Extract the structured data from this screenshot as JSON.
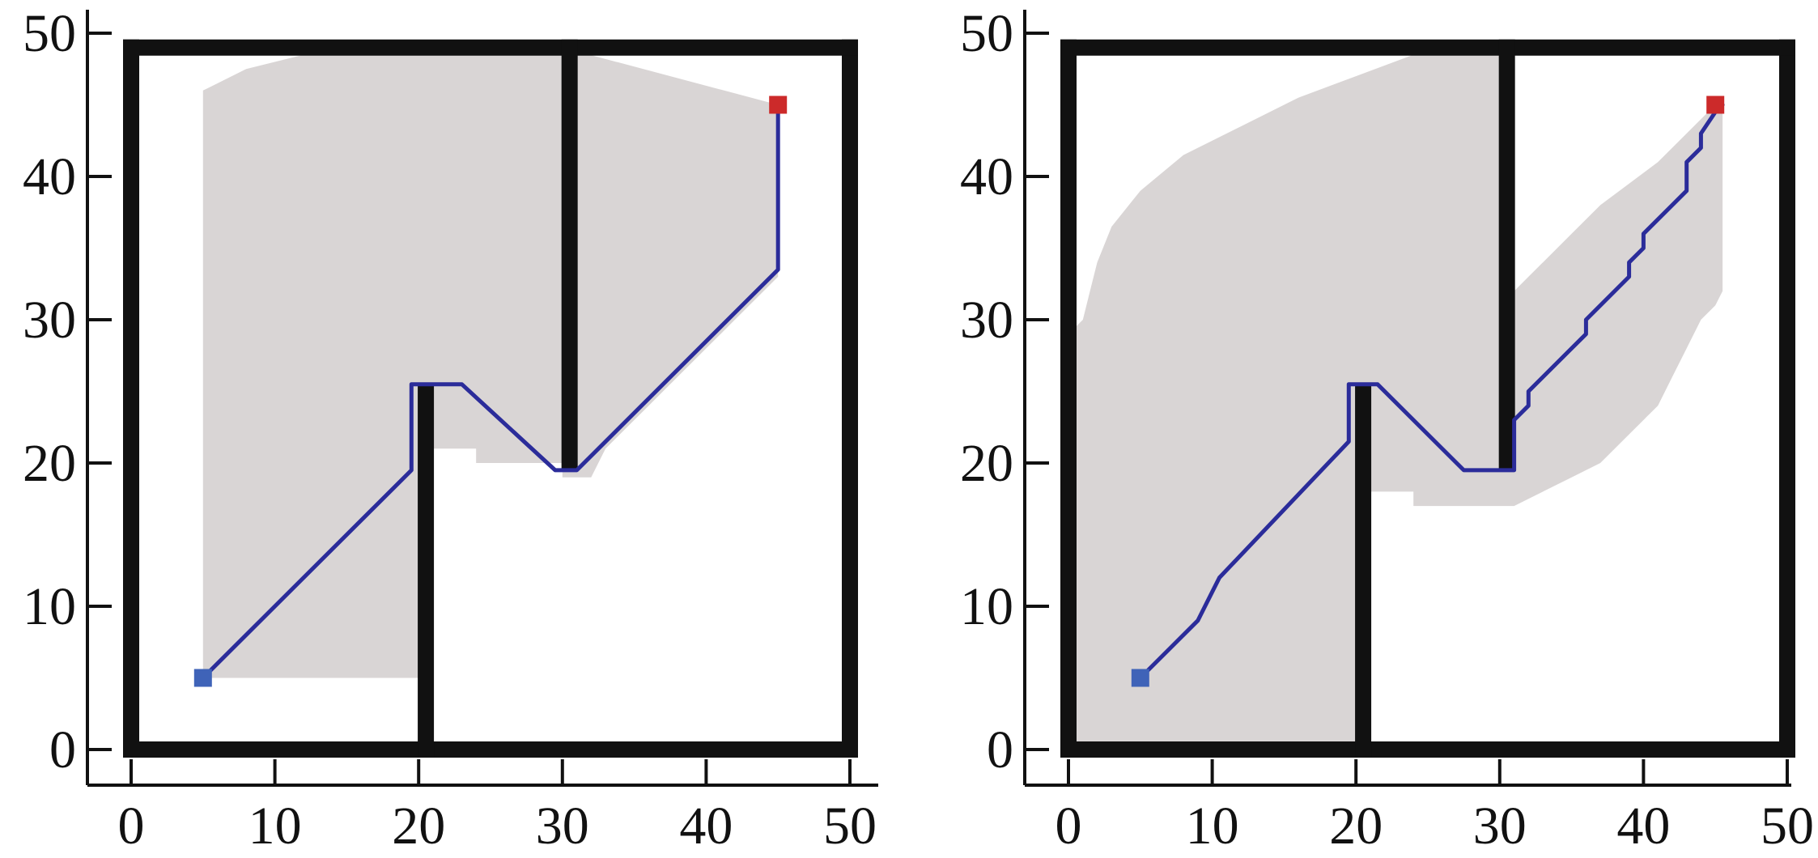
{
  "colors": {
    "wall": "#111111",
    "explored": "#d9d5d5",
    "path": "#2b2c9a",
    "start": "#3f63b8",
    "goal": "#cc2a2a",
    "axis": "#111111"
  },
  "chart_data": [
    {
      "type": "grid-path",
      "xlim": [
        0,
        50
      ],
      "ylim": [
        0,
        50
      ],
      "x_ticks": [
        "0",
        "10",
        "20",
        "30",
        "40",
        "50"
      ],
      "y_ticks": [
        "0",
        "10",
        "20",
        "30",
        "40",
        "50"
      ],
      "start": [
        5,
        5
      ],
      "goal": [
        45,
        45
      ],
      "walls": [
        [
          [
            0,
            0
          ],
          [
            50,
            0
          ]
        ],
        [
          [
            50,
            0
          ],
          [
            50,
            49
          ]
        ],
        [
          [
            50,
            49
          ],
          [
            0,
            49
          ]
        ],
        [
          [
            0,
            49
          ],
          [
            0,
            0
          ]
        ],
        [
          [
            20.5,
            0
          ],
          [
            20.5,
            25
          ]
        ],
        [
          [
            30.5,
            49
          ],
          [
            30.5,
            20
          ]
        ]
      ],
      "explored": [
        [
          5,
          5
        ],
        [
          20,
          5
        ],
        [
          20,
          21
        ],
        [
          24,
          21
        ],
        [
          24,
          20
        ],
        [
          30,
          20
        ],
        [
          30,
          19
        ],
        [
          32,
          19
        ],
        [
          33,
          21
        ],
        [
          34,
          22
        ],
        [
          35,
          23
        ],
        [
          36,
          24
        ],
        [
          37,
          25
        ],
        [
          38,
          26
        ],
        [
          39,
          27
        ],
        [
          40,
          28
        ],
        [
          41,
          29
        ],
        [
          42,
          30
        ],
        [
          43,
          31
        ],
        [
          44,
          32
        ],
        [
          45,
          33
        ],
        [
          45,
          45
        ],
        [
          30,
          49
        ],
        [
          15,
          49
        ],
        [
          12,
          48.5
        ],
        [
          8,
          47.5
        ],
        [
          6,
          46.5
        ],
        [
          5,
          46
        ]
      ],
      "path": [
        [
          5,
          5
        ],
        [
          19.5,
          19.5
        ],
        [
          19.5,
          25.5
        ],
        [
          23,
          25.5
        ],
        [
          29.5,
          19.5
        ],
        [
          31,
          19.5
        ],
        [
          45,
          33.5
        ],
        [
          45,
          45
        ]
      ]
    },
    {
      "type": "grid-path",
      "xlim": [
        0,
        50
      ],
      "ylim": [
        0,
        50
      ],
      "x_ticks": [
        "0",
        "10",
        "20",
        "30",
        "40",
        "50"
      ],
      "y_ticks": [
        "0",
        "10",
        "20",
        "30",
        "40",
        "50"
      ],
      "start": [
        5,
        5
      ],
      "goal": [
        45,
        45
      ],
      "walls": [
        [
          [
            0,
            0
          ],
          [
            50,
            0
          ]
        ],
        [
          [
            50,
            0
          ],
          [
            50,
            49
          ]
        ],
        [
          [
            50,
            49
          ],
          [
            0,
            49
          ]
        ],
        [
          [
            0,
            49
          ],
          [
            0,
            0
          ]
        ],
        [
          [
            20.5,
            0
          ],
          [
            20.5,
            25
          ]
        ],
        [
          [
            30.5,
            49
          ],
          [
            30.5,
            20
          ]
        ]
      ],
      "explored": [
        [
          0,
          0
        ],
        [
          20,
          0
        ],
        [
          20,
          18
        ],
        [
          24,
          18
        ],
        [
          24,
          17
        ],
        [
          30,
          17
        ],
        [
          31,
          17
        ],
        [
          33,
          18
        ],
        [
          35,
          19
        ],
        [
          37,
          20
        ],
        [
          39,
          22
        ],
        [
          41,
          24
        ],
        [
          42,
          26
        ],
        [
          43,
          28
        ],
        [
          44,
          30
        ],
        [
          45,
          31
        ],
        [
          45.5,
          32
        ],
        [
          45.5,
          45.5
        ],
        [
          43,
          43
        ],
        [
          41,
          41
        ],
        [
          39,
          39.5
        ],
        [
          37,
          38
        ],
        [
          35,
          36
        ],
        [
          33,
          34
        ],
        [
          32,
          33
        ],
        [
          31,
          32
        ],
        [
          31,
          49
        ],
        [
          28,
          49
        ],
        [
          24,
          48.5
        ],
        [
          20,
          47
        ],
        [
          16,
          45.5
        ],
        [
          12,
          43.5
        ],
        [
          8,
          41.5
        ],
        [
          5,
          39
        ],
        [
          3,
          36.5
        ],
        [
          2,
          34
        ],
        [
          1.5,
          32
        ],
        [
          1,
          30
        ],
        [
          0,
          29
        ]
      ],
      "path": [
        [
          5,
          5
        ],
        [
          7,
          7
        ],
        [
          9,
          9
        ],
        [
          9.5,
          10
        ],
        [
          10,
          11
        ],
        [
          10.5,
          12
        ],
        [
          19.5,
          21.5
        ],
        [
          19.5,
          25.5
        ],
        [
          21.5,
          25.5
        ],
        [
          27.5,
          19.5
        ],
        [
          31,
          19.5
        ],
        [
          31,
          23
        ],
        [
          32,
          24
        ],
        [
          32,
          25
        ],
        [
          35,
          28
        ],
        [
          36,
          29
        ],
        [
          36,
          30
        ],
        [
          39,
          33
        ],
        [
          39,
          34
        ],
        [
          40,
          35
        ],
        [
          40,
          36
        ],
        [
          43,
          39
        ],
        [
          43,
          41
        ],
        [
          44,
          42
        ],
        [
          44,
          43
        ],
        [
          45,
          44.5
        ],
        [
          45.5,
          45
        ]
      ]
    }
  ]
}
